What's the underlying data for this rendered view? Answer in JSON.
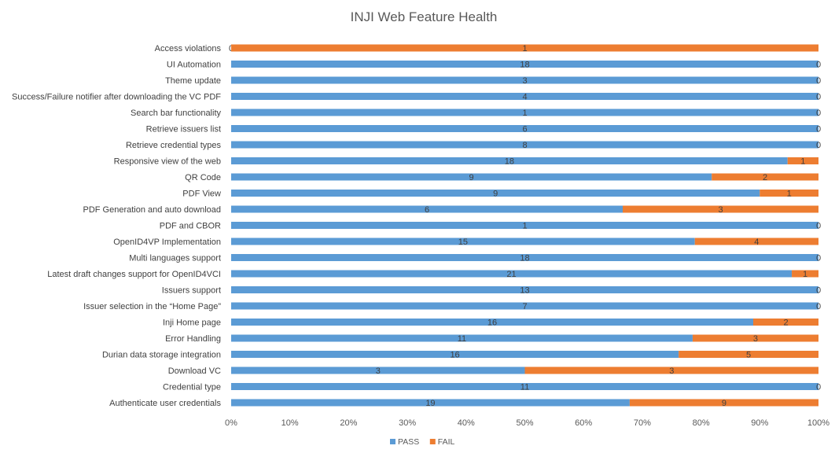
{
  "chart_data": {
    "type": "bar",
    "orientation": "horizontal",
    "stacked": "percent",
    "title": "INJI Web Feature Health",
    "categories": [
      "Access violations",
      "UI Automation",
      "Theme update",
      "Success/Failure notifier after downloading the VC PDF",
      "Search bar functionality",
      "Retrieve issuers list",
      "Retrieve credential types",
      "Responsive view of the web",
      "QR Code",
      "PDF View",
      "PDF Generation and auto download",
      "PDF and CBOR",
      "OpenID4VP Implementation",
      "Multi languages support",
      "Latest draft changes support for OpenID4VCI",
      "Issuers support",
      "Issuer selection in the “Home Page”",
      "Inji Home page",
      "Error Handling",
      "Durian data storage integration",
      "Download VC",
      "Credential type",
      "Authenticate user credentials"
    ],
    "series": [
      {
        "name": "PASS",
        "color": "#5B9BD5",
        "values": [
          0,
          18,
          3,
          4,
          1,
          6,
          8,
          18,
          9,
          9,
          6,
          1,
          15,
          18,
          21,
          13,
          7,
          16,
          11,
          16,
          3,
          11,
          19
        ]
      },
      {
        "name": "FAIL",
        "color": "#ED7D31",
        "values": [
          1,
          0,
          0,
          0,
          0,
          0,
          0,
          1,
          2,
          1,
          3,
          0,
          4,
          0,
          1,
          0,
          0,
          2,
          3,
          5,
          3,
          0,
          9
        ]
      }
    ],
    "x_ticks": [
      "0%",
      "10%",
      "20%",
      "30%",
      "40%",
      "50%",
      "60%",
      "70%",
      "80%",
      "90%",
      "100%"
    ],
    "xlim": [
      0,
      100
    ],
    "grid": false,
    "legend_position": "bottom"
  }
}
